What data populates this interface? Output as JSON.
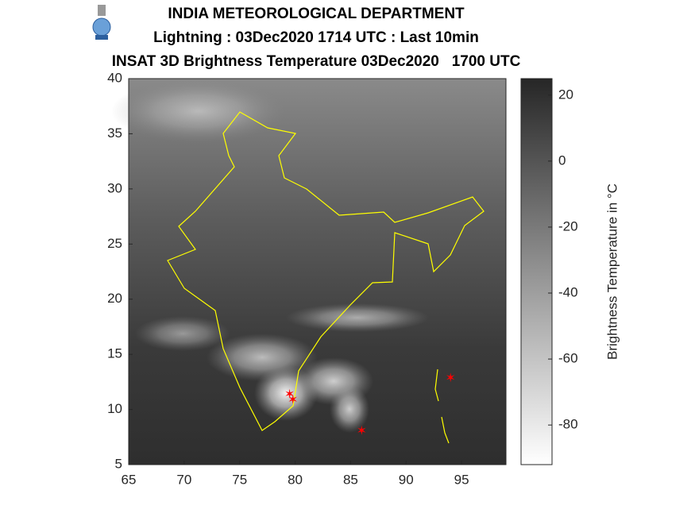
{
  "map": {
    "header": {
      "title": "INDIA METEOROLOGICAL DEPARTMENT",
      "subtitle": "Lightning : 03Dec2020 1714 UTC : Last 10min",
      "product": "INSAT 3D Brightness Temperature 03Dec2020   1700 UTC"
    },
    "xlim": [
      65,
      99
    ],
    "ylim": [
      5,
      40
    ],
    "xticks": [
      65,
      70,
      75,
      80,
      85,
      90,
      95
    ],
    "yticks": [
      5,
      10,
      15,
      20,
      25,
      30,
      35,
      40
    ],
    "colorbar": {
      "label": "Brightness Temperature in °C",
      "lim": [
        -92,
        25
      ],
      "ticks": [
        20,
        0,
        -20,
        -40,
        -60,
        -80
      ]
    },
    "lightning": {
      "lon": [
        79.5,
        79.8,
        86.0,
        94.0
      ],
      "lat": [
        11.3,
        10.8,
        8.0,
        12.8
      ],
      "color": "#ff0000"
    }
  }
}
